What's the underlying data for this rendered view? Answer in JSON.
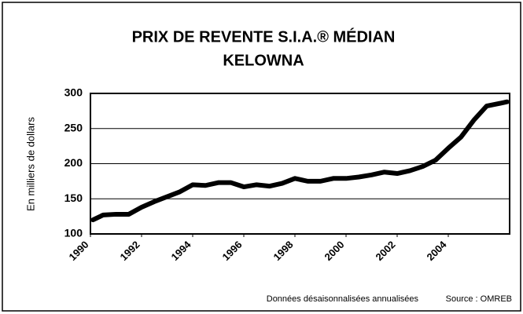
{
  "chart_data": {
    "type": "line",
    "title": [
      "PRIX DE REVENTE S.I.A.® MÉDIAN",
      "KELOWNA"
    ],
    "ylabel": "En milliers de dollars",
    "footnote": "Données désaisonnalisées annualisées",
    "source": "Source : OMREB",
    "x": [
      1990.1,
      1990.5,
      1991,
      1991.5,
      1992,
      1992.5,
      1993,
      1993.5,
      1994,
      1994.5,
      1995,
      1995.5,
      1996,
      1996.5,
      1997,
      1997.5,
      1998,
      1998.5,
      1999,
      1999.5,
      2000,
      2000.5,
      2001,
      2001.5,
      2002,
      2002.5,
      2003,
      2003.5,
      2004,
      2004.5,
      2005,
      2005.5,
      2006.3
    ],
    "series": [
      {
        "color": "#000000",
        "values": [
          120,
          127,
          128,
          128,
          138,
          146,
          153,
          160,
          170,
          169,
          173,
          173,
          167,
          170,
          168,
          172,
          179,
          175,
          175,
          179,
          179,
          181,
          184,
          188,
          186,
          190,
          196,
          205,
          222,
          238,
          262,
          282,
          288
        ]
      }
    ],
    "xlim": [
      1990,
      2006.4
    ],
    "xticks": [
      1990,
      1992,
      1994,
      1996,
      1998,
      2000,
      2002,
      2004
    ],
    "ylim": [
      100,
      300
    ],
    "yticks": [
      100,
      150,
      200,
      250,
      300
    ],
    "grid": true
  }
}
